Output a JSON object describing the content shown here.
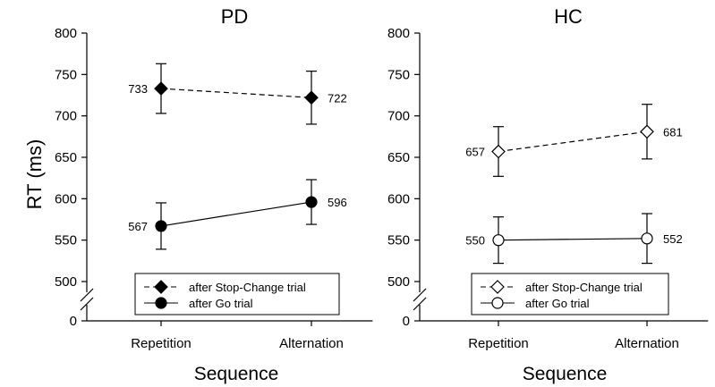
{
  "chart_data": {
    "type": "line",
    "ylabel": "RT (ms)",
    "yticks": [
      0,
      500,
      550,
      600,
      650,
      700,
      750,
      800
    ],
    "ylim": [
      500,
      800
    ],
    "axis_break": true,
    "legend_placement": "bottom",
    "panels": [
      {
        "title": "PD",
        "xlabel": "Sequence",
        "categories": [
          "Repetition",
          "Alternation"
        ],
        "series": [
          {
            "name": "after Stop-Change trial",
            "marker": "diamond",
            "fill": "filled",
            "line": "dashed",
            "values": [
              733,
              722
            ],
            "error_low": [
              703,
              690
            ],
            "error_high": [
              763,
              754
            ],
            "labels": [
              "733",
              "722"
            ]
          },
          {
            "name": "after Go trial",
            "marker": "circle",
            "fill": "filled",
            "line": "solid",
            "values": [
              567,
              596
            ],
            "error_low": [
              539,
              569
            ],
            "error_high": [
              595,
              623
            ],
            "labels": [
              "567",
              "596"
            ]
          }
        ]
      },
      {
        "title": "HC",
        "xlabel": "Sequence",
        "categories": [
          "Repetition",
          "Alternation"
        ],
        "series": [
          {
            "name": "after Stop-Change trial",
            "marker": "diamond",
            "fill": "open",
            "line": "dashed",
            "values": [
              657,
              681
            ],
            "error_low": [
              627,
              648
            ],
            "error_high": [
              687,
              714
            ],
            "labels": [
              "657",
              "681"
            ]
          },
          {
            "name": "after Go trial",
            "marker": "circle",
            "fill": "open",
            "line": "solid",
            "values": [
              550,
              552
            ],
            "error_low": [
              522,
              522
            ],
            "error_high": [
              578,
              582
            ],
            "labels": [
              "550",
              "552"
            ]
          }
        ]
      }
    ]
  }
}
